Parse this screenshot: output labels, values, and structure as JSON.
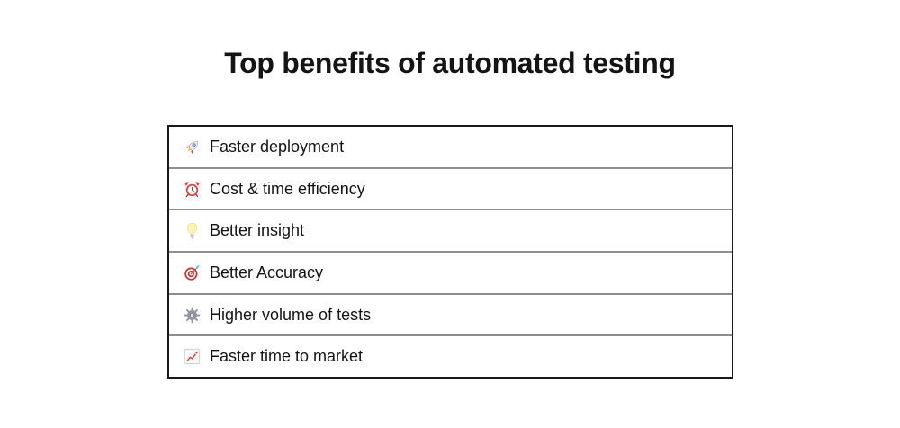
{
  "page": {
    "title": "Top benefits of automated testing",
    "background": "#ffffff"
  },
  "benefits_table": {
    "rows": [
      {
        "icon": "rocket-icon",
        "emoji": "🚀",
        "label": "Faster deployment"
      },
      {
        "icon": "alarm-clock-icon",
        "emoji": "⏰",
        "label": "Cost & time efficiency"
      },
      {
        "icon": "light-bulb-icon",
        "emoji": "💡",
        "label": "Better insight"
      },
      {
        "icon": "dart-target-icon",
        "emoji": "🎯",
        "label": "Better Accuracy"
      },
      {
        "icon": "gear-icon",
        "emoji": "⚙️",
        "label": "Higher volume of tests"
      },
      {
        "icon": "chart-increasing-icon",
        "emoji": "📈",
        "label": "Faster time to market"
      }
    ],
    "colors": {
      "outer_border": "#1a1a1a",
      "row_divider": "#8f8f8f",
      "text": "#141414"
    }
  }
}
